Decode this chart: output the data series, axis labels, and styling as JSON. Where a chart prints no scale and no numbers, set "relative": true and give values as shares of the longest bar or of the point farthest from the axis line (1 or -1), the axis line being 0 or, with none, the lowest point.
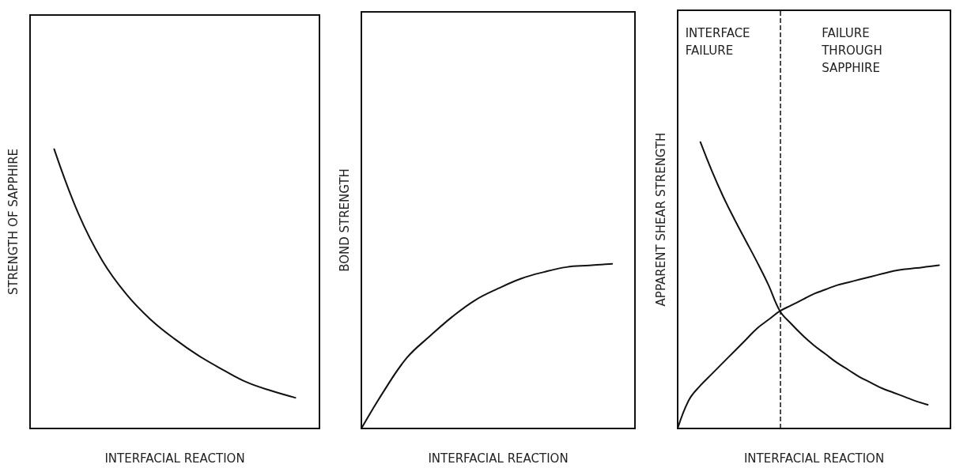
{
  "chart_data": [
    {
      "type": "line",
      "relative": true,
      "xlabel": "INTERFACIAL REACTION",
      "ylabel": "STRENGTH OF SAPPHIRE",
      "marker": "none",
      "categories": [
        null,
        null,
        null,
        null,
        null,
        null,
        null,
        null,
        null,
        null,
        null,
        null,
        null
      ],
      "series": [
        {
          "color": "#111111",
          "values": [
            null,
            1,
            0.77,
            0.6,
            0.48,
            0.39,
            0.32,
            0.26,
            0.21,
            0.165,
            0.135,
            0.11,
            null
          ]
        }
      ]
    },
    {
      "type": "line",
      "relative": true,
      "xlabel": "INTERFACIAL REACTION",
      "ylabel": "BOND STRENGTH",
      "marker": "none",
      "categories": [
        null,
        null,
        null,
        null,
        null,
        null,
        null,
        null,
        null,
        null,
        null,
        null,
        null
      ],
      "series": [
        {
          "color": "#111111",
          "values": [
            0,
            0.23,
            0.43,
            0.56,
            0.68,
            0.78,
            0.85,
            0.91,
            0.95,
            0.98,
            0.99,
            1,
            null
          ]
        }
      ]
    },
    {
      "type": "line",
      "relative": true,
      "xlabel": "INTERFACIAL REACTION",
      "ylabel": "APPARENT SHEAR STRENGTH",
      "marker": "none",
      "categories": [
        null,
        null,
        null,
        null,
        null,
        null,
        null,
        null,
        null,
        null,
        null,
        null,
        null,
        null,
        null,
        null,
        null,
        null,
        null,
        null,
        null,
        null,
        null,
        null,
        null
      ],
      "series": [
        {
          "color": "#111111",
          "values": [
            null,
            null,
            1,
            0.9,
            0.81,
            0.73,
            0.655,
            0.58,
            0.5,
            0.41,
            0.365,
            0.325,
            0.29,
            0.26,
            0.23,
            0.205,
            0.18,
            0.16,
            0.14,
            0.125,
            0.11,
            0.095,
            0.083,
            null,
            null
          ]
        },
        {
          "color": "#111111",
          "values": [
            0,
            0.1,
            0.15,
            0.19,
            0.23,
            0.27,
            0.31,
            0.35,
            0.38,
            0.41,
            0.43,
            0.45,
            0.47,
            0.485,
            0.5,
            0.51,
            0.52,
            0.53,
            0.54,
            0.55,
            0.556,
            0.56,
            0.565,
            0.57,
            null
          ]
        }
      ],
      "ref_lines": [
        {
          "axis": "x",
          "color": "#111111",
          "line_style": "dashed"
        }
      ],
      "annotations": [
        "INTERFACE FAILURE",
        "FAILURE THROUGH SAPPHIRE"
      ]
    }
  ]
}
